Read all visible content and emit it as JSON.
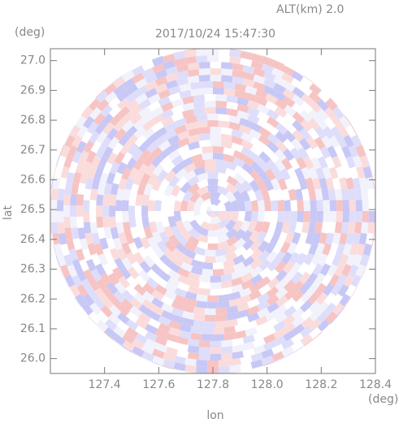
{
  "chart_data": {
    "type": "radar-ppi",
    "title": "2017/10/24 15:47:30",
    "annotation": "ALT(km) 2.0",
    "xlabel": "lon",
    "ylabel": "lat",
    "x_unit": "(deg)",
    "y_unit": "(deg)",
    "xlim": [
      127.2,
      128.4
    ],
    "ylim": [
      25.95,
      27.04
    ],
    "xticks": [
      127.4,
      127.6,
      127.8,
      {
        "value": 128.0,
        "label": "128.0"
      },
      128.2,
      128.4
    ],
    "yticks": [
      {
        "value": 26.0,
        "label": "26.0"
      },
      26.1,
      26.2,
      26.3,
      26.4,
      26.5,
      26.6,
      26.7,
      26.8,
      26.9,
      {
        "value": 27.0,
        "label": "27.0"
      }
    ]
  }
}
